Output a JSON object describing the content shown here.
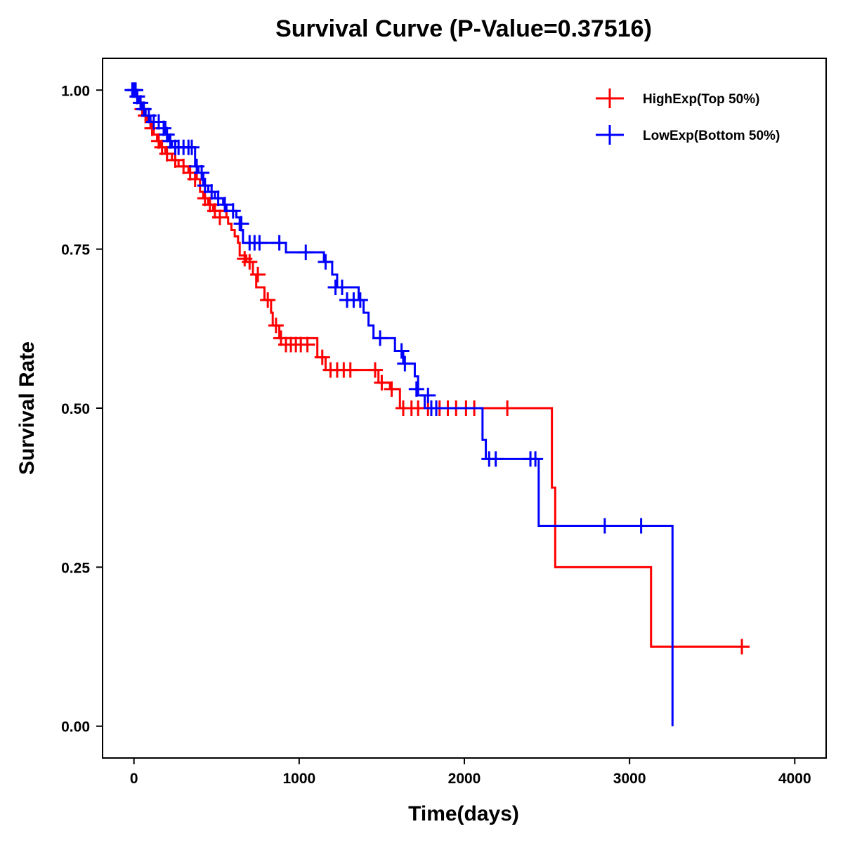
{
  "chart_data": {
    "type": "line",
    "subtype": "kaplan-meier-step",
    "title": "Survival Curve (P-Value=0.37516)",
    "xlabel": "Time(days)",
    "ylabel": "Survival Rate",
    "xlim": [
      -190,
      4190
    ],
    "ylim": [
      -0.05,
      1.05
    ],
    "xticks": [
      0,
      1000,
      2000,
      3000,
      4000
    ],
    "xtick_labels": [
      "0",
      "1000",
      "2000",
      "3000",
      "4000"
    ],
    "yticks": [
      0,
      0.25,
      0.5,
      0.75,
      1.0
    ],
    "ytick_labels": [
      "0.00",
      "0.25",
      "0.50",
      "0.75",
      "1.00"
    ],
    "legend_position": "top-right",
    "grid": false,
    "series": [
      {
        "name": "HighExp(Top 50%)",
        "color": "#ff0000",
        "steps": [
          [
            0,
            1.0
          ],
          [
            10,
            0.99
          ],
          [
            25,
            0.98
          ],
          [
            40,
            0.97
          ],
          [
            60,
            0.96
          ],
          [
            80,
            0.95
          ],
          [
            100,
            0.94
          ],
          [
            120,
            0.93
          ],
          [
            140,
            0.92
          ],
          [
            160,
            0.91
          ],
          [
            190,
            0.9
          ],
          [
            230,
            0.89
          ],
          [
            270,
            0.88
          ],
          [
            330,
            0.87
          ],
          [
            380,
            0.86
          ],
          [
            400,
            0.84
          ],
          [
            420,
            0.83
          ],
          [
            450,
            0.82
          ],
          [
            480,
            0.81
          ],
          [
            560,
            0.8
          ],
          [
            570,
            0.79
          ],
          [
            590,
            0.78
          ],
          [
            610,
            0.77
          ],
          [
            630,
            0.76
          ],
          [
            640,
            0.74
          ],
          [
            680,
            0.73
          ],
          [
            720,
            0.71
          ],
          [
            740,
            0.69
          ],
          [
            790,
            0.67
          ],
          [
            830,
            0.65
          ],
          [
            840,
            0.63
          ],
          [
            880,
            0.61
          ],
          [
            1110,
            0.58
          ],
          [
            1160,
            0.56
          ],
          [
            1480,
            0.54
          ],
          [
            1550,
            0.53
          ],
          [
            1610,
            0.5
          ],
          [
            2530,
            0.375
          ],
          [
            2550,
            0.25
          ],
          [
            3130,
            0.125
          ]
        ],
        "end": 3720,
        "censored": [
          [
            20,
            0.99
          ],
          [
            50,
            0.97
          ],
          [
            70,
            0.96
          ],
          [
            110,
            0.94
          ],
          [
            150,
            0.92
          ],
          [
            170,
            0.91
          ],
          [
            200,
            0.9
          ],
          [
            250,
            0.89
          ],
          [
            300,
            0.88
          ],
          [
            340,
            0.87
          ],
          [
            370,
            0.86
          ],
          [
            430,
            0.83
          ],
          [
            460,
            0.82
          ],
          [
            490,
            0.81
          ],
          [
            520,
            0.8
          ],
          [
            670,
            0.735
          ],
          [
            700,
            0.73
          ],
          [
            750,
            0.71
          ],
          [
            810,
            0.67
          ],
          [
            860,
            0.63
          ],
          [
            890,
            0.61
          ],
          [
            920,
            0.6
          ],
          [
            950,
            0.6
          ],
          [
            980,
            0.6
          ],
          [
            1010,
            0.6
          ],
          [
            1050,
            0.6
          ],
          [
            1140,
            0.58
          ],
          [
            1190,
            0.56
          ],
          [
            1230,
            0.56
          ],
          [
            1270,
            0.56
          ],
          [
            1310,
            0.56
          ],
          [
            1460,
            0.56
          ],
          [
            1500,
            0.54
          ],
          [
            1560,
            0.53
          ],
          [
            1630,
            0.5
          ],
          [
            1680,
            0.5
          ],
          [
            1720,
            0.5
          ],
          [
            1780,
            0.5
          ],
          [
            1850,
            0.5
          ],
          [
            1900,
            0.5
          ],
          [
            1950,
            0.5
          ],
          [
            2010,
            0.5
          ],
          [
            2060,
            0.5
          ],
          [
            2260,
            0.5
          ],
          [
            3680,
            0.125
          ]
        ]
      },
      {
        "name": "LowExp(Bottom 50%)",
        "color": "#0000ff",
        "steps": [
          [
            0,
            1.0
          ],
          [
            10,
            0.99
          ],
          [
            30,
            0.98
          ],
          [
            50,
            0.97
          ],
          [
            70,
            0.96
          ],
          [
            100,
            0.95
          ],
          [
            190,
            0.93
          ],
          [
            210,
            0.92
          ],
          [
            230,
            0.91
          ],
          [
            370,
            0.88
          ],
          [
            390,
            0.87
          ],
          [
            420,
            0.85
          ],
          [
            450,
            0.84
          ],
          [
            490,
            0.83
          ],
          [
            540,
            0.82
          ],
          [
            560,
            0.81
          ],
          [
            620,
            0.8
          ],
          [
            640,
            0.78
          ],
          [
            660,
            0.76
          ],
          [
            920,
            0.745
          ],
          [
            1150,
            0.73
          ],
          [
            1200,
            0.71
          ],
          [
            1230,
            0.69
          ],
          [
            1360,
            0.67
          ],
          [
            1390,
            0.65
          ],
          [
            1420,
            0.63
          ],
          [
            1450,
            0.61
          ],
          [
            1580,
            0.59
          ],
          [
            1630,
            0.57
          ],
          [
            1700,
            0.55
          ],
          [
            1720,
            0.52
          ],
          [
            1760,
            0.5
          ],
          [
            2110,
            0.45
          ],
          [
            2130,
            0.42
          ],
          [
            2450,
            0.315
          ],
          [
            3260,
            0.0
          ]
        ],
        "end": 3260,
        "censored": [
          [
            -10,
            1.0
          ],
          [
            0,
            1.0
          ],
          [
            10,
            1.0
          ],
          [
            20,
            0.99
          ],
          [
            40,
            0.98
          ],
          [
            60,
            0.97
          ],
          [
            90,
            0.96
          ],
          [
            120,
            0.95
          ],
          [
            150,
            0.95
          ],
          [
            180,
            0.94
          ],
          [
            200,
            0.93
          ],
          [
            220,
            0.92
          ],
          [
            250,
            0.91
          ],
          [
            270,
            0.91
          ],
          [
            300,
            0.91
          ],
          [
            330,
            0.91
          ],
          [
            350,
            0.91
          ],
          [
            380,
            0.88
          ],
          [
            410,
            0.87
          ],
          [
            430,
            0.85
          ],
          [
            470,
            0.84
          ],
          [
            510,
            0.83
          ],
          [
            550,
            0.82
          ],
          [
            600,
            0.81
          ],
          [
            650,
            0.79
          ],
          [
            700,
            0.76
          ],
          [
            730,
            0.76
          ],
          [
            760,
            0.76
          ],
          [
            880,
            0.76
          ],
          [
            1040,
            0.745
          ],
          [
            1160,
            0.73
          ],
          [
            1220,
            0.69
          ],
          [
            1260,
            0.69
          ],
          [
            1290,
            0.67
          ],
          [
            1330,
            0.67
          ],
          [
            1370,
            0.67
          ],
          [
            1490,
            0.61
          ],
          [
            1620,
            0.59
          ],
          [
            1640,
            0.57
          ],
          [
            1710,
            0.53
          ],
          [
            1780,
            0.52
          ],
          [
            1800,
            0.5
          ],
          [
            1830,
            0.5
          ],
          [
            2150,
            0.42
          ],
          [
            2190,
            0.42
          ],
          [
            2400,
            0.42
          ],
          [
            2430,
            0.42
          ],
          [
            2850,
            0.315
          ],
          [
            3070,
            0.315
          ]
        ]
      }
    ]
  }
}
